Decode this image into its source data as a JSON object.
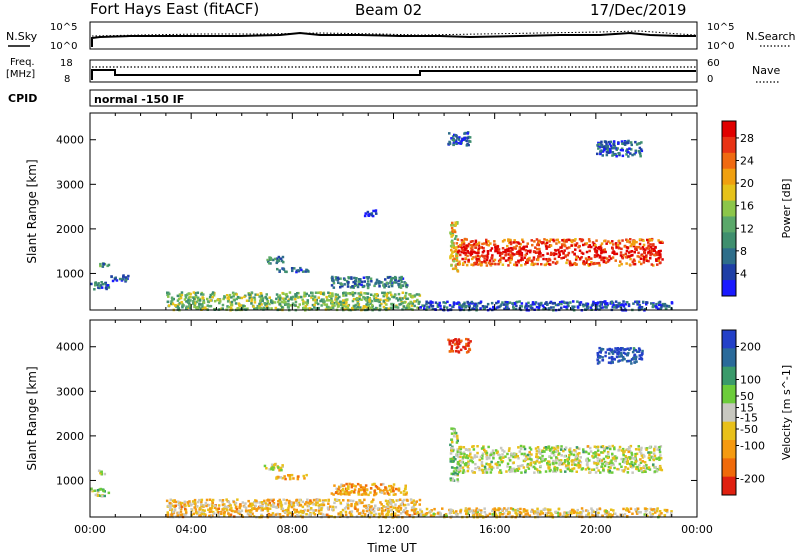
{
  "header": {
    "station": "Fort Hays East (fitACF)",
    "beam": "Beam 02",
    "date": "17/Dec/2019"
  },
  "top_panels": {
    "nsky_label": "N.Sky",
    "nsky_ticks": [
      "10^5",
      "10^0"
    ],
    "nsearch_label": "N.Search",
    "nsearch_ticks": [
      "10^5",
      "10^0"
    ],
    "freq_label_1": "Freq.",
    "freq_label_2": "[MHz]",
    "freq_ticks": [
      "18",
      "8"
    ],
    "nave_label": "Nave",
    "nave_ticks": [
      "60",
      "0"
    ],
    "cpid_label": "CPID",
    "cpid_value": "normal -150 IF"
  },
  "colors": {
    "power_scale": [
      "#1a1aff",
      "#1f3fa6",
      "#2e6e8a",
      "#3f8f6e",
      "#5aa86a",
      "#8cc64a",
      "#e6c21a",
      "#f0a010",
      "#ef6a12",
      "#e83315",
      "#e00000"
    ],
    "velocity_scale": [
      "#2340c8",
      "#2a6a9a",
      "#3a9a6a",
      "#6ccc3a",
      "#c8c8c0",
      "#e8c01a",
      "#f59a10",
      "#f06a0a",
      "#e02010"
    ],
    "axis": "#000000"
  },
  "chart_data": [
    {
      "type": "heatmap",
      "panel": "power",
      "ylabel": "Slant Range [km]",
      "xlabel": "",
      "x_ticks": [
        "00:00",
        "04:00",
        "08:00",
        "12:00",
        "16:00",
        "20:00",
        "00:00"
      ],
      "xlim_hours": [
        0,
        24
      ],
      "y_ticks": [
        1000,
        2000,
        3000,
        4000
      ],
      "ylim": [
        180,
        4600
      ],
      "colorbar": {
        "label": "Power [dB]",
        "ticks": [
          4,
          8,
          12,
          16,
          20,
          24,
          28
        ],
        "range": [
          0,
          31
        ]
      },
      "regions": [
        {
          "t": [
            0.0,
            0.7
          ],
          "r": [
            650,
            850
          ],
          "level": 0.25
        },
        {
          "t": [
            0.8,
            1.5
          ],
          "r": [
            850,
            1000
          ],
          "level": 0.15
        },
        {
          "t": [
            0.3,
            0.8
          ],
          "r": [
            1150,
            1250
          ],
          "level": 0.3
        },
        {
          "t": [
            6.8,
            7.6
          ],
          "r": [
            1250,
            1400
          ],
          "level": 0.3
        },
        {
          "t": [
            7.3,
            8.6
          ],
          "r": [
            1050,
            1150
          ],
          "level": 0.2
        },
        {
          "t": [
            9.5,
            12.5
          ],
          "r": [
            700,
            950
          ],
          "level": 0.25
        },
        {
          "t": [
            10.8,
            11.3
          ],
          "r": [
            2300,
            2450
          ],
          "level": 0.1
        },
        {
          "t": [
            3.0,
            13.0
          ],
          "r": [
            200,
            600
          ],
          "level": 0.45
        },
        {
          "t": [
            13.0,
            23.0
          ],
          "r": [
            200,
            400
          ],
          "level": 0.15
        },
        {
          "t": [
            14.2,
            14.5
          ],
          "r": [
            1000,
            2200
          ],
          "level": 0.6
        },
        {
          "t": [
            14.5,
            22.6
          ],
          "r": [
            1200,
            1800
          ],
          "level": 0.75
        },
        {
          "t": [
            14.1,
            15.0
          ],
          "r": [
            3900,
            4200
          ],
          "level": 0.15
        },
        {
          "t": [
            20.0,
            21.8
          ],
          "r": [
            3650,
            4000
          ],
          "level": 0.2
        }
      ]
    },
    {
      "type": "heatmap",
      "panel": "velocity",
      "ylabel": "Slant Range [km]",
      "xlabel": "Time UT",
      "x_ticks": [
        "00:00",
        "04:00",
        "08:00",
        "12:00",
        "16:00",
        "20:00",
        "00:00"
      ],
      "xlim_hours": [
        0,
        24
      ],
      "y_ticks": [
        1000,
        2000,
        3000,
        4000
      ],
      "ylim": [
        180,
        4600
      ],
      "colorbar": {
        "label": "Velocity [m s^-1]",
        "ticks": [
          200,
          100,
          50,
          15,
          -15,
          -50,
          -100,
          -200
        ],
        "range": [
          -250,
          250
        ]
      },
      "regions": [
        {
          "t": [
            0.0,
            0.7
          ],
          "r": [
            650,
            850
          ],
          "level": 0.45
        },
        {
          "t": [
            0.3,
            0.6
          ],
          "r": [
            1150,
            1250
          ],
          "level": 0.5
        },
        {
          "t": [
            6.8,
            7.6
          ],
          "r": [
            1250,
            1400
          ],
          "level": 0.5
        },
        {
          "t": [
            7.3,
            8.6
          ],
          "r": [
            1050,
            1150
          ],
          "level": 0.65
        },
        {
          "t": [
            9.5,
            12.5
          ],
          "r": [
            700,
            950
          ],
          "level": 0.7
        },
        {
          "t": [
            3.0,
            13.0
          ],
          "r": [
            200,
            600
          ],
          "level": 0.62
        },
        {
          "t": [
            13.0,
            23.0
          ],
          "r": [
            200,
            400
          ],
          "level": 0.6
        },
        {
          "t": [
            14.2,
            14.5
          ],
          "r": [
            1000,
            2200
          ],
          "level": 0.4
        },
        {
          "t": [
            14.5,
            22.6
          ],
          "r": [
            1200,
            1800
          ],
          "level": 0.5
        },
        {
          "t": [
            14.1,
            15.0
          ],
          "r": [
            3900,
            4200
          ],
          "level": 0.95
        },
        {
          "t": [
            20.0,
            21.8
          ],
          "r": [
            3650,
            4000
          ],
          "level": 0.05
        }
      ]
    }
  ]
}
